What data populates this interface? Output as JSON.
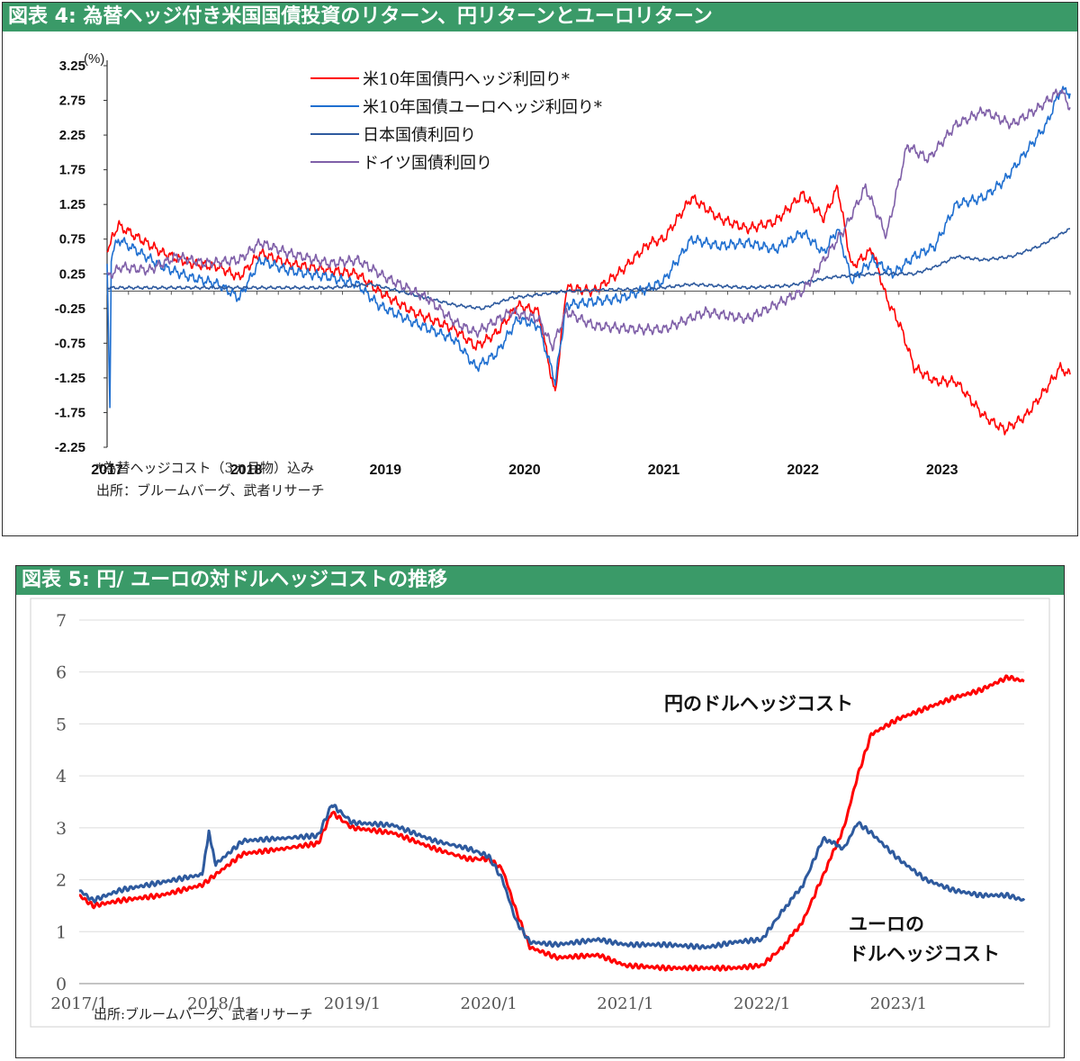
{
  "chart_data": [
    {
      "type": "line",
      "title": "図表 4: 為替ヘッジ付き米国国債投資のリターン、円リターンとユーロリターン",
      "unit_label": "(%)",
      "y_ticks": [
        "3.25",
        "2.75",
        "2.25",
        "1.75",
        "1.25",
        "0.75",
        "0.25",
        "-0.25",
        "-0.75",
        "-1.25",
        "-1.75",
        "-2.25"
      ],
      "x_ticks": [
        "2017",
        "2018",
        "2019",
        "2020",
        "2021",
        "2022",
        "2023"
      ],
      "ylim": [
        -2.25,
        3.25
      ],
      "xlim": [
        2017.0,
        2023.92
      ],
      "grid": false,
      "legend_position": "top-center",
      "series": [
        {
          "name": "米10年国債円ヘッジ利回り*",
          "color": "#ff0000",
          "x": [
            2017.0,
            2017.08,
            2017.2,
            2017.4,
            2017.6,
            2017.8,
            2017.95,
            2018.1,
            2018.3,
            2018.6,
            2018.8,
            2018.95,
            2019.2,
            2019.5,
            2019.65,
            2019.8,
            2019.95,
            2020.1,
            2020.22,
            2020.3,
            2020.5,
            2020.7,
            2020.9,
            2021.0,
            2021.2,
            2021.4,
            2021.6,
            2021.8,
            2022.0,
            2022.15,
            2022.25,
            2022.35,
            2022.5,
            2022.6,
            2022.7,
            2022.8,
            2022.95,
            2023.1,
            2023.3,
            2023.45,
            2023.6,
            2023.75,
            2023.85,
            2023.92
          ],
          "y": [
            0.6,
            0.95,
            0.8,
            0.55,
            0.4,
            0.35,
            0.2,
            0.55,
            0.4,
            0.3,
            0.25,
            0.0,
            -0.3,
            -0.55,
            -0.8,
            -0.6,
            -0.2,
            -0.3,
            -1.5,
            0.05,
            0.0,
            0.3,
            0.7,
            0.75,
            1.35,
            1.05,
            0.9,
            1.0,
            1.4,
            1.05,
            1.5,
            0.35,
            0.6,
            -0.1,
            -0.5,
            -1.1,
            -1.3,
            -1.3,
            -1.8,
            -2.0,
            -1.8,
            -1.4,
            -1.1,
            -1.2
          ]
        },
        {
          "name": "米10年国債ユーロヘッジ利回り*",
          "color": "#1f6fd0",
          "x": [
            2017.0,
            2017.02,
            2017.03,
            2017.08,
            2017.2,
            2017.4,
            2017.6,
            2017.8,
            2017.95,
            2018.1,
            2018.3,
            2018.6,
            2018.8,
            2018.95,
            2019.2,
            2019.5,
            2019.65,
            2019.8,
            2019.95,
            2020.1,
            2020.22,
            2020.3,
            2020.5,
            2020.7,
            2020.9,
            2021.0,
            2021.2,
            2021.4,
            2021.6,
            2021.8,
            2022.0,
            2022.15,
            2022.25,
            2022.35,
            2022.5,
            2022.65,
            2022.8,
            2022.95,
            2023.1,
            2023.3,
            2023.45,
            2023.6,
            2023.75,
            2023.85,
            2023.92
          ],
          "y": [
            0.4,
            -1.75,
            0.5,
            0.75,
            0.6,
            0.35,
            0.2,
            0.1,
            -0.1,
            0.45,
            0.3,
            0.2,
            0.1,
            -0.2,
            -0.45,
            -0.7,
            -1.1,
            -0.9,
            -0.4,
            -0.5,
            -1.3,
            -0.2,
            -0.15,
            -0.1,
            0.05,
            0.15,
            0.75,
            0.65,
            0.7,
            0.6,
            0.85,
            0.55,
            0.9,
            0.15,
            0.45,
            0.25,
            0.5,
            0.65,
            1.25,
            1.35,
            1.6,
            2.0,
            2.4,
            2.9,
            2.85
          ]
        },
        {
          "name": "日本国債利回り",
          "color": "#2e5a9e",
          "x": [
            2017.0,
            2017.3,
            2017.6,
            2017.9,
            2018.2,
            2018.6,
            2018.9,
            2019.2,
            2019.5,
            2019.7,
            2019.9,
            2020.1,
            2020.3,
            2020.6,
            2020.9,
            2021.2,
            2021.6,
            2021.9,
            2022.2,
            2022.5,
            2022.8,
            2022.95,
            2023.1,
            2023.3,
            2023.5,
            2023.7,
            2023.92
          ],
          "y": [
            0.05,
            0.05,
            0.05,
            0.05,
            0.05,
            0.05,
            0.1,
            -0.05,
            -0.2,
            -0.25,
            -0.1,
            -0.05,
            0.0,
            0.02,
            0.03,
            0.1,
            0.05,
            0.08,
            0.2,
            0.25,
            0.25,
            0.35,
            0.5,
            0.45,
            0.5,
            0.65,
            0.9
          ]
        },
        {
          "name": "ドイツ国債利回り",
          "color": "#7f5fa8",
          "x": [
            2017.0,
            2017.1,
            2017.3,
            2017.5,
            2017.7,
            2017.95,
            2018.1,
            2018.3,
            2018.6,
            2018.8,
            2019.0,
            2019.3,
            2019.5,
            2019.65,
            2019.9,
            2020.1,
            2020.2,
            2020.3,
            2020.5,
            2020.8,
            2021.0,
            2021.3,
            2021.6,
            2021.8,
            2022.0,
            2022.2,
            2022.3,
            2022.45,
            2022.6,
            2022.75,
            2022.9,
            2023.1,
            2023.3,
            2023.5,
            2023.7,
            2023.85,
            2023.92
          ],
          "y": [
            0.2,
            0.35,
            0.3,
            0.5,
            0.4,
            0.45,
            0.7,
            0.55,
            0.4,
            0.45,
            0.2,
            -0.1,
            -0.45,
            -0.6,
            -0.3,
            -0.4,
            -0.8,
            -0.3,
            -0.5,
            -0.55,
            -0.55,
            -0.3,
            -0.4,
            -0.2,
            0.0,
            0.6,
            0.9,
            1.5,
            0.8,
            2.1,
            1.9,
            2.4,
            2.6,
            2.4,
            2.65,
            2.9,
            2.65
          ]
        }
      ],
      "notes": [
        "*為替ヘッジコスト（3ヵ月物）込み",
        "出所：ブルームバーグ、武者リサーチ"
      ]
    },
    {
      "type": "line",
      "title": "図表 5: 円/ ユーロの対ドルヘッジコストの推移",
      "y_ticks": [
        "7",
        "6",
        "5",
        "4",
        "3",
        "2",
        "1",
        "0"
      ],
      "x_ticks": [
        "2017/1",
        "2018/1",
        "2019/1",
        "2020/1",
        "2021/1",
        "2022/1",
        "2023/1"
      ],
      "ylim": [
        0,
        7
      ],
      "xlim": [
        2017.0,
        2023.92
      ],
      "grid": true,
      "series": [
        {
          "name": "円のドルヘッジコスト",
          "color": "#ff0000",
          "x": [
            2017.0,
            2017.1,
            2017.3,
            2017.6,
            2017.9,
            2018.0,
            2018.2,
            2018.5,
            2018.75,
            2018.85,
            2019.0,
            2019.3,
            2019.6,
            2019.85,
            2020.0,
            2020.1,
            2020.2,
            2020.3,
            2020.5,
            2020.8,
            2021.0,
            2021.3,
            2021.6,
            2021.8,
            2022.0,
            2022.15,
            2022.3,
            2022.45,
            2022.6,
            2022.7,
            2022.8,
            2023.0,
            2023.2,
            2023.4,
            2023.6,
            2023.8,
            2023.92
          ],
          "y": [
            1.7,
            1.5,
            1.6,
            1.7,
            1.9,
            2.1,
            2.5,
            2.6,
            2.7,
            3.3,
            3.0,
            2.9,
            2.6,
            2.4,
            2.4,
            2.2,
            1.4,
            0.7,
            0.5,
            0.55,
            0.35,
            0.3,
            0.3,
            0.3,
            0.35,
            0.7,
            1.2,
            2.1,
            3.0,
            4.0,
            4.8,
            5.1,
            5.3,
            5.5,
            5.65,
            5.9,
            5.82
          ]
        },
        {
          "name": "ユーロのドルヘッジコスト",
          "color": "#2e5a9e",
          "x": [
            2017.0,
            2017.1,
            2017.3,
            2017.6,
            2017.9,
            2017.95,
            2018.0,
            2018.2,
            2018.5,
            2018.75,
            2018.85,
            2019.0,
            2019.3,
            2019.6,
            2019.85,
            2020.0,
            2020.1,
            2020.2,
            2020.3,
            2020.5,
            2020.8,
            2021.0,
            2021.3,
            2021.6,
            2021.8,
            2022.0,
            2022.15,
            2022.3,
            2022.45,
            2022.6,
            2022.7,
            2022.8,
            2023.0,
            2023.2,
            2023.4,
            2023.6,
            2023.8,
            2023.92
          ],
          "y": [
            1.8,
            1.6,
            1.8,
            1.95,
            2.1,
            2.9,
            2.3,
            2.75,
            2.8,
            2.85,
            3.45,
            3.1,
            3.05,
            2.75,
            2.6,
            2.45,
            2.0,
            1.2,
            0.8,
            0.75,
            0.85,
            0.75,
            0.75,
            0.7,
            0.8,
            0.85,
            1.4,
            1.9,
            2.8,
            2.6,
            3.1,
            2.9,
            2.4,
            2.0,
            1.8,
            1.7,
            1.7,
            1.6
          ]
        }
      ],
      "annotations": [
        "円のドルヘッジコスト",
        "ユーロの",
        "ドルヘッジコスト"
      ],
      "notes": [
        "出所:ブルームバーグ、武者リサーチ"
      ]
    }
  ]
}
